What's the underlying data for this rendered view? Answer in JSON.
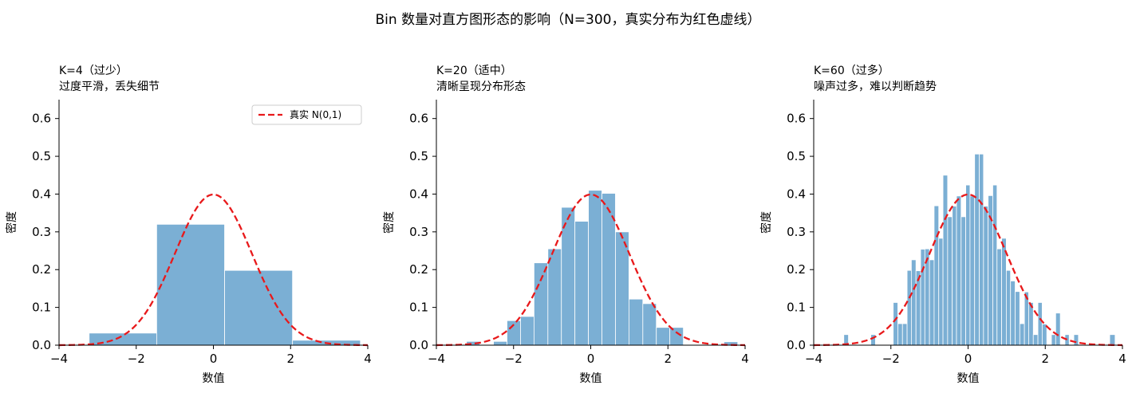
{
  "suptitle": "Bin 数量对直方图形态的影响（N=300，真实分布为红色虚线）",
  "colors": {
    "bar": "#7bafd4",
    "bar_edge": "#ffffff",
    "curve": "#e8191b",
    "axis": "#000000"
  },
  "chart_data": [
    {
      "type": "bar",
      "title_line1": "K=4（过少）",
      "title_line2": "过度平滑，丢失细节",
      "xlabel": "数值",
      "ylabel": "密度",
      "xlim": [
        -4,
        4
      ],
      "ylim": [
        0,
        0.65
      ],
      "xticks": [
        -4,
        -2,
        0,
        2,
        4
      ],
      "yticks": [
        0.0,
        0.1,
        0.2,
        0.3,
        0.4,
        0.5,
        0.6
      ],
      "bin_edges": [
        -3.22,
        -1.47,
        0.29,
        2.05,
        3.81
      ],
      "values": [
        0.032,
        0.32,
        0.198,
        0.013
      ],
      "curve": {
        "name": "真实 N(0,1)",
        "style": "dashed"
      },
      "legend": {
        "show": true,
        "position": "top-right",
        "label": "真实 N(0,1)"
      }
    },
    {
      "type": "bar",
      "title_line1": "K=20（适中）",
      "title_line2": "清晰呈现分布形态",
      "xlabel": "数值",
      "ylabel": "密度",
      "xlim": [
        -4,
        4
      ],
      "ylim": [
        0,
        0.65
      ],
      "xticks": [
        -4,
        -2,
        0,
        2,
        4
      ],
      "yticks": [
        0.0,
        0.1,
        0.2,
        0.3,
        0.4,
        0.5,
        0.6
      ],
      "bin_edges": [
        -3.22,
        -2.87,
        -2.52,
        -2.17,
        -1.82,
        -1.47,
        -1.11,
        -0.76,
        -0.41,
        -0.06,
        0.29,
        0.64,
        0.99,
        1.35,
        1.7,
        2.05,
        2.4,
        2.75,
        3.1,
        3.45,
        3.81
      ],
      "values": [
        0.01,
        0.0,
        0.01,
        0.065,
        0.076,
        0.218,
        0.255,
        0.365,
        0.328,
        0.41,
        0.402,
        0.3,
        0.122,
        0.11,
        0.047,
        0.047,
        0.0,
        0.0,
        0.0,
        0.009
      ],
      "curve": {
        "name": "真实 N(0,1)",
        "style": "dashed"
      },
      "legend": {
        "show": false
      }
    },
    {
      "type": "bar",
      "title_line1": "K=60（过多）",
      "title_line2": "噪声过多，难以判断趋势",
      "xlabel": "数值",
      "ylabel": "密度",
      "xlim": [
        -4,
        4
      ],
      "ylim": [
        0,
        0.65
      ],
      "xticks": [
        -4,
        -2,
        0,
        2,
        4
      ],
      "yticks": [
        0.0,
        0.1,
        0.2,
        0.3,
        0.4,
        0.5,
        0.6
      ],
      "bin_edges": [
        -3.22,
        -3.1,
        -2.99,
        -2.87,
        -2.75,
        -2.64,
        -2.52,
        -2.4,
        -2.29,
        -2.17,
        -2.05,
        -1.94,
        -1.82,
        -1.7,
        -1.58,
        -1.47,
        -1.35,
        -1.23,
        -1.12,
        -1.0,
        -0.88,
        -0.76,
        -0.65,
        -0.53,
        -0.41,
        -0.3,
        -0.18,
        -0.06,
        0.05,
        0.17,
        0.29,
        0.4,
        0.52,
        0.64,
        0.75,
        0.87,
        0.99,
        1.1,
        1.22,
        1.34,
        1.46,
        1.57,
        1.69,
        1.81,
        1.92,
        2.04,
        2.16,
        2.27,
        2.39,
        2.51,
        2.62,
        2.74,
        2.86,
        2.97,
        3.09,
        3.21,
        3.32,
        3.44,
        3.56,
        3.67,
        3.81
      ],
      "values": [
        0.028,
        0,
        0,
        0,
        0,
        0,
        0.028,
        0,
        0,
        0,
        0,
        0.113,
        0.057,
        0.057,
        0.198,
        0.226,
        0.197,
        0.254,
        0.255,
        0.226,
        0.369,
        0.283,
        0.45,
        0.34,
        0.368,
        0.395,
        0.34,
        0.424,
        0.395,
        0.506,
        0.506,
        0.368,
        0.396,
        0.424,
        0.255,
        0.283,
        0.198,
        0.17,
        0.142,
        0.057,
        0.141,
        0.113,
        0.028,
        0.113,
        0.056,
        0.0,
        0.028,
        0.085,
        0.0,
        0.028,
        0.0,
        0.028,
        0.0,
        0.0,
        0.0,
        0.0,
        0.0,
        0.0,
        0.0,
        0.028
      ],
      "curve": {
        "name": "真实 N(0,1)",
        "style": "dashed"
      },
      "legend": {
        "show": false
      }
    }
  ]
}
